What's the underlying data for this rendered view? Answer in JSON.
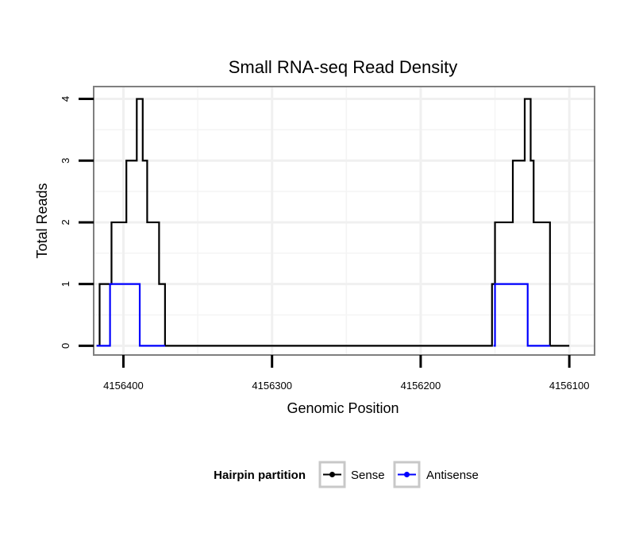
{
  "chart_data": {
    "type": "line",
    "title": "Small RNA-seq Read Density",
    "xlabel": "Genomic Position",
    "ylabel": "Total Reads",
    "xlim": [
      4156420,
      4156083
    ],
    "ylim": [
      -0.15,
      4.2
    ],
    "x_reversed": true,
    "x_ticks": [
      4156400,
      4156300,
      4156200,
      4156100
    ],
    "x_tick_labels": [
      "4156400",
      "4156300",
      "4156200",
      "4156100"
    ],
    "y_ticks": [
      0,
      1,
      2,
      3,
      4
    ],
    "y_tick_labels": [
      "0",
      "1",
      "2",
      "3",
      "4"
    ],
    "grid": true,
    "legend": {
      "title": "Hairpin partition",
      "placement": "bottom",
      "entries": [
        {
          "name": "Sense",
          "color": "#000000"
        },
        {
          "name": "Antisense",
          "color": "#0000ff"
        }
      ]
    },
    "series": [
      {
        "name": "Sense",
        "color": "#000000",
        "step": true,
        "x": [
          4156418,
          4156416,
          4156408,
          4156398,
          4156391,
          4156389,
          4156387,
          4156384,
          4156376,
          4156372,
          4156368,
          4156350,
          4156300,
          4156250,
          4156200,
          4156152,
          4156150,
          4156146,
          4156138,
          4156130,
          4156128,
          4156126,
          4156124,
          4156113,
          4156112,
          4156100
        ],
        "y": [
          0,
          1,
          2,
          3,
          4,
          4,
          3,
          2,
          1,
          0,
          0,
          0,
          0,
          0,
          0,
          1,
          2,
          2,
          3,
          4,
          4,
          3,
          2,
          0,
          0,
          0
        ]
      },
      {
        "name": "Antisense",
        "color": "#0000ff",
        "step": true,
        "x": [
          4156418,
          4156409,
          4156389,
          4156372
        ],
        "y": [
          0,
          1,
          0,
          0
        ]
      },
      {
        "name": "Antisense",
        "color": "#0000ff",
        "step": true,
        "x": [
          4156151,
          4156150,
          4156130,
          4156128,
          4156113
        ],
        "y": [
          0,
          1,
          1,
          0,
          0
        ]
      }
    ]
  }
}
